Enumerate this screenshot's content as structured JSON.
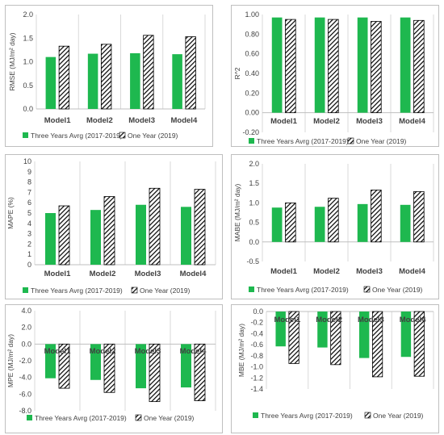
{
  "colors": {
    "green": "#1eb84f",
    "hatch": "#000000",
    "grid": "#d9d9d9",
    "text": "#404040"
  },
  "legend": {
    "series_a": "Three Years Avrg (2017-2019)",
    "series_b": "One Year (2019)"
  },
  "chart_data": [
    {
      "type": "bar",
      "ylabel": "RMSE (MJ/m² day)",
      "ylim": [
        0.0,
        2.0
      ],
      "yticks": [
        "0.0",
        "0.5",
        "1.0",
        "1.5",
        "2.0"
      ],
      "categories": [
        "Model1",
        "Model2",
        "Model3",
        "Model4"
      ],
      "series": [
        {
          "name": "Three Years Avrg (2017-2019)",
          "values": [
            1.1,
            1.17,
            1.18,
            1.16
          ]
        },
        {
          "name": "One Year (2019)",
          "values": [
            1.33,
            1.37,
            1.56,
            1.53
          ]
        }
      ],
      "legend_position": "bottom",
      "grid": "vertical"
    },
    {
      "type": "bar",
      "ylabel": "R^2",
      "ylim": [
        -0.2,
        1.0
      ],
      "yticks": [
        "-0.20",
        "0.00",
        "0.20",
        "0.40",
        "0.60",
        "0.80",
        "1.00"
      ],
      "categories": [
        "Model1",
        "Model2",
        "Model3",
        "Model4"
      ],
      "series": [
        {
          "name": "Three Years Avrg (2017-2019)",
          "values": [
            0.97,
            0.97,
            0.97,
            0.97
          ]
        },
        {
          "name": "One Year (2019)",
          "values": [
            0.95,
            0.95,
            0.93,
            0.94
          ]
        }
      ],
      "legend_position": "bottom",
      "grid": "vertical"
    },
    {
      "type": "bar",
      "ylabel": "MAPE (%)",
      "ylim": [
        0,
        10
      ],
      "yticks": [
        "0",
        "1",
        "2",
        "3",
        "4",
        "5",
        "6",
        "7",
        "8",
        "9",
        "10"
      ],
      "categories": [
        "Model1",
        "Model2",
        "Model3",
        "Model4"
      ],
      "series": [
        {
          "name": "Three Years Avrg (2017-2019)",
          "values": [
            5.0,
            5.3,
            5.8,
            5.6
          ]
        },
        {
          "name": "One Year (2019)",
          "values": [
            5.7,
            6.6,
            7.4,
            7.3
          ]
        }
      ],
      "legend_position": "bottom",
      "grid": "vertical"
    },
    {
      "type": "bar",
      "ylabel": "MABE (MJ/m² day)",
      "ylim": [
        -0.5,
        2.0
      ],
      "yticks": [
        "-0.5",
        "0.0",
        "0.5",
        "1.0",
        "1.5",
        "2.0"
      ],
      "categories": [
        "Model1",
        "Model2",
        "Model3",
        "Model4"
      ],
      "series": [
        {
          "name": "Three Years Avrg (2017-2019)",
          "values": [
            0.88,
            0.9,
            0.97,
            0.95
          ]
        },
        {
          "name": "One Year (2019)",
          "values": [
            1.0,
            1.12,
            1.33,
            1.29
          ]
        }
      ],
      "legend_position": "bottom",
      "grid": "vertical"
    },
    {
      "type": "bar",
      "ylabel": "MPE (MJ/m² day)",
      "ylim": [
        -8.0,
        4.0
      ],
      "yticks": [
        "-8.0",
        "-6.0",
        "-4.0",
        "-2.0",
        "0.0",
        "2.0",
        "4.0"
      ],
      "categories": [
        "Model1",
        "Model2",
        "Model3",
        "Model4"
      ],
      "series": [
        {
          "name": "Three Years Avrg (2017-2019)",
          "values": [
            -4.1,
            -4.3,
            -5.3,
            -5.2
          ]
        },
        {
          "name": "One Year (2019)",
          "values": [
            -5.3,
            -5.8,
            -6.9,
            -6.8
          ]
        }
      ],
      "legend_position": "bottom",
      "grid": "vertical"
    },
    {
      "type": "bar",
      "ylabel": "MBE (MJ/m² day)",
      "ylim": [
        -1.4,
        0.0
      ],
      "yticks": [
        "-1.4",
        "-1.2",
        "-1.0",
        "-0.8",
        "-0.6",
        "-0.4",
        "-0.2",
        "0.0"
      ],
      "categories": [
        "Model1",
        "Model2",
        "Model3",
        "Model4"
      ],
      "series": [
        {
          "name": "Three Years Avrg (2017-2019)",
          "values": [
            -0.63,
            -0.65,
            -0.84,
            -0.82
          ]
        },
        {
          "name": "One Year (2019)",
          "values": [
            -0.94,
            -0.96,
            -1.18,
            -1.17
          ]
        }
      ],
      "legend_position": "bottom",
      "grid": "vertical"
    }
  ]
}
